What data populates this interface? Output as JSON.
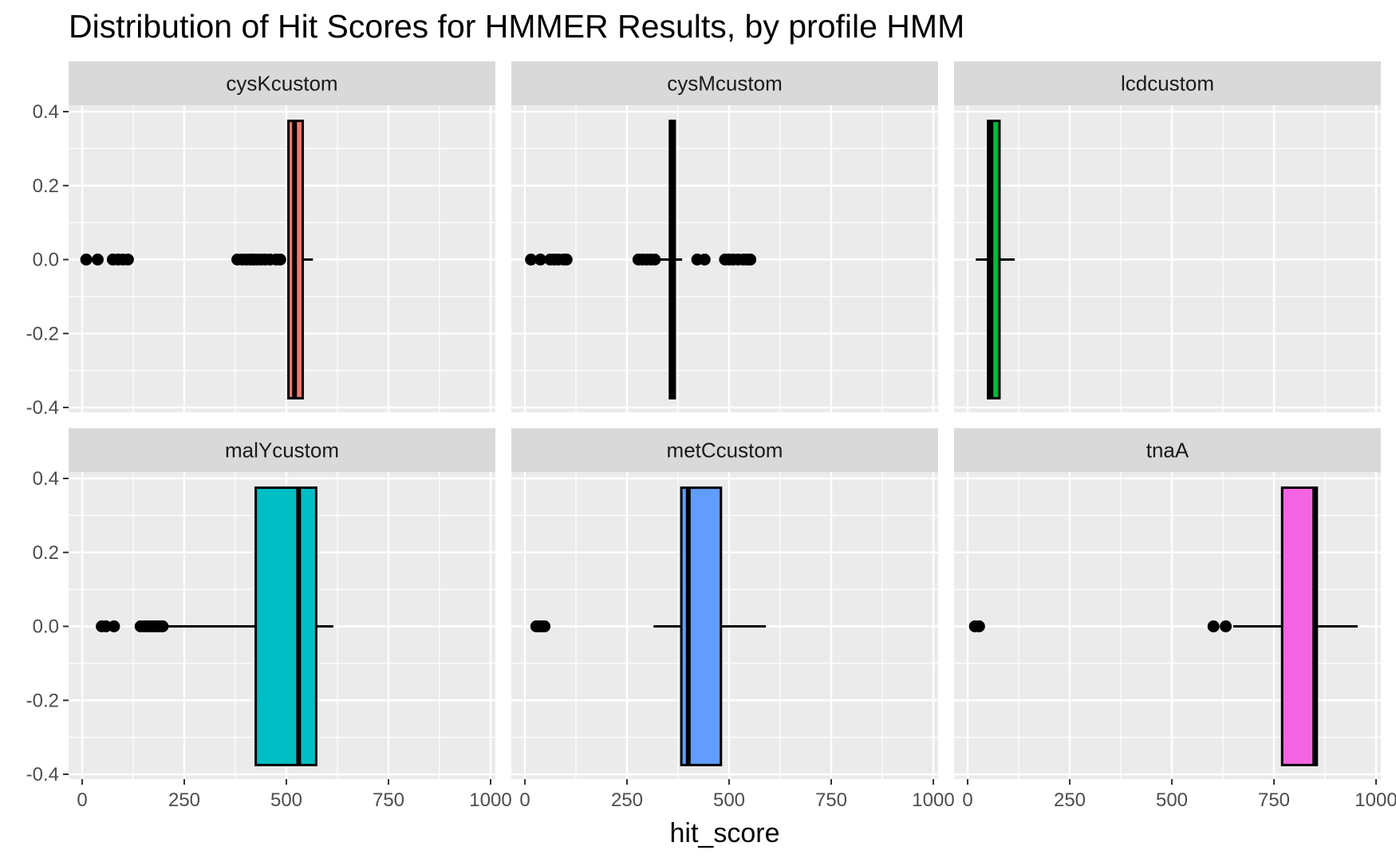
{
  "chart_data": {
    "type": "boxplot",
    "title": "Distribution of Hit Scores for HMMER Results, by profile HMM",
    "xlabel": "hit_score",
    "ylabel": "",
    "xlim": [
      0,
      1000
    ],
    "ylim": [
      -0.4,
      0.4
    ],
    "x_ticks": [
      0,
      250,
      500,
      750,
      1000
    ],
    "x_tick_labels": [
      "0",
      "250",
      "500",
      "750",
      "1000"
    ],
    "y_ticks": [
      0.4,
      0.2,
      0.0,
      -0.2,
      -0.4
    ],
    "y_tick_labels": [
      "0.4",
      "0.2",
      "0.0",
      "-0.2",
      "-0.4"
    ],
    "grid": true,
    "layout": "facet_wrap 2 rows x 3 columns",
    "panels": [
      {
        "name": "cysKcustom",
        "color": "#F8766D",
        "whisker_low": 505,
        "q1": 505,
        "median": 520,
        "q3": 540,
        "whisker_high": 565,
        "outliers": [
          10,
          38,
          75,
          88,
          100,
          112,
          380,
          392,
          402,
          412,
          420,
          428,
          438,
          448,
          460,
          475,
          485
        ]
      },
      {
        "name": "cysMcustom",
        "color": "#B79F00",
        "whisker_low": 330,
        "q1": 355,
        "median": 360,
        "q3": 367,
        "whisker_high": 385,
        "outliers": [
          15,
          38,
          62,
          72,
          82,
          95,
          102,
          278,
          288,
          298,
          308,
          318,
          422,
          440,
          490,
          500,
          510,
          522,
          535,
          545,
          552
        ]
      },
      {
        "name": "lcdcustom",
        "color": "#00BA38",
        "whisker_low": 20,
        "q1": 50,
        "median": 57,
        "q3": 78,
        "whisker_high": 115,
        "outliers": []
      },
      {
        "name": "malYcustom",
        "color": "#00BFC4",
        "whisker_low": 200,
        "q1": 425,
        "median": 530,
        "q3": 573,
        "whisker_high": 615,
        "outliers": [
          48,
          58,
          78,
          143,
          152,
          160,
          168,
          175,
          182,
          190,
          197
        ]
      },
      {
        "name": "metCcustom",
        "color": "#619CFF",
        "whisker_low": 315,
        "q1": 383,
        "median": 400,
        "q3": 480,
        "whisker_high": 590,
        "outliers": [
          28,
          35,
          42,
          48
        ]
      },
      {
        "name": "tnaA",
        "color": "#F564E3",
        "whisker_low": 650,
        "q1": 770,
        "median": 850,
        "q3": 855,
        "whisker_high": 955,
        "outliers": [
          18,
          28,
          602,
          632
        ]
      }
    ]
  }
}
